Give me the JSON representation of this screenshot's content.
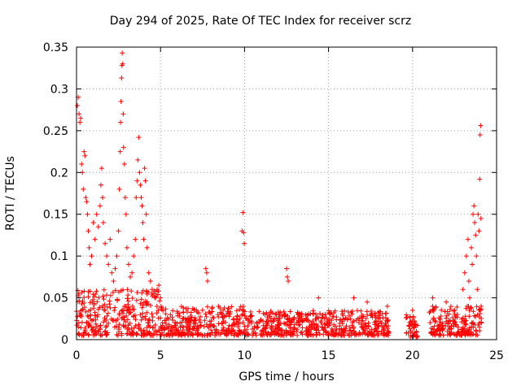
{
  "chart_data": {
    "type": "scatter",
    "title": "Day 294 of 2025, Rate Of TEC Index for receiver scrz",
    "xlabel": "GPS time / hours",
    "ylabel": "ROTI / TECUs",
    "xlim": [
      0,
      25
    ],
    "ylim": [
      0,
      0.35
    ],
    "xticks": [
      "0",
      "5",
      "10",
      "15",
      "20",
      "25"
    ],
    "yticks": [
      "0",
      "0.05",
      "0.1",
      "0.15",
      "0.2",
      "0.25",
      "0.3",
      "0.35"
    ],
    "grid": true,
    "marker": "+",
    "color": "#ff0000",
    "series": [
      {
        "name": "ROTI",
        "points": [
          [
            0.05,
            0.28
          ],
          [
            0.1,
            0.29
          ],
          [
            0.15,
            0.27
          ],
          [
            0.2,
            0.26
          ],
          [
            0.25,
            0.265
          ],
          [
            0.3,
            0.21
          ],
          [
            0.35,
            0.2
          ],
          [
            0.4,
            0.18
          ],
          [
            0.45,
            0.225
          ],
          [
            0.5,
            0.22
          ],
          [
            0.55,
            0.17
          ],
          [
            0.6,
            0.165
          ],
          [
            0.65,
            0.15
          ],
          [
            0.7,
            0.13
          ],
          [
            0.75,
            0.11
          ],
          [
            0.8,
            0.09
          ],
          [
            0.9,
            0.1
          ],
          [
            1.0,
            0.14
          ],
          [
            1.1,
            0.12
          ],
          [
            1.2,
            0.15
          ],
          [
            1.3,
            0.135
          ],
          [
            1.4,
            0.16
          ],
          [
            1.45,
            0.185
          ],
          [
            1.5,
            0.205
          ],
          [
            1.55,
            0.17
          ],
          [
            1.6,
            0.14
          ],
          [
            1.7,
            0.115
          ],
          [
            1.8,
            0.1
          ],
          [
            1.9,
            0.09
          ],
          [
            2.0,
            0.12
          ],
          [
            2.1,
            0.08
          ],
          [
            2.2,
            0.07
          ],
          [
            2.3,
            0.085
          ],
          [
            2.4,
            0.1
          ],
          [
            2.5,
            0.13
          ],
          [
            2.55,
            0.18
          ],
          [
            2.6,
            0.225
          ],
          [
            2.62,
            0.26
          ],
          [
            2.65,
            0.285
          ],
          [
            2.68,
            0.313
          ],
          [
            2.7,
            0.328
          ],
          [
            2.72,
            0.343
          ],
          [
            2.75,
            0.33
          ],
          [
            2.78,
            0.27
          ],
          [
            2.8,
            0.23
          ],
          [
            2.85,
            0.21
          ],
          [
            2.9,
            0.17
          ],
          [
            2.95,
            0.15
          ],
          [
            3.0,
            0.11
          ],
          [
            3.1,
            0.09
          ],
          [
            3.2,
            0.075
          ],
          [
            3.3,
            0.08
          ],
          [
            3.4,
            0.1
          ],
          [
            3.5,
            0.12
          ],
          [
            3.55,
            0.17
          ],
          [
            3.6,
            0.19
          ],
          [
            3.65,
            0.215
          ],
          [
            3.7,
            0.242
          ],
          [
            3.75,
            0.2
          ],
          [
            3.8,
            0.185
          ],
          [
            3.85,
            0.17
          ],
          [
            3.9,
            0.16
          ],
          [
            3.95,
            0.14
          ],
          [
            4.0,
            0.12
          ],
          [
            4.05,
            0.205
          ],
          [
            4.1,
            0.19
          ],
          [
            4.15,
            0.15
          ],
          [
            4.2,
            0.11
          ],
          [
            4.3,
            0.08
          ],
          [
            4.4,
            0.07
          ],
          [
            4.5,
            0.06
          ],
          [
            4.6,
            0.055
          ],
          [
            4.7,
            0.05
          ],
          [
            4.8,
            0.06
          ],
          [
            4.9,
            0.065
          ],
          [
            5.0,
            0.05
          ],
          [
            7.7,
            0.085
          ],
          [
            7.75,
            0.08
          ],
          [
            7.8,
            0.07
          ],
          [
            9.9,
            0.152
          ],
          [
            9.95,
            0.128
          ],
          [
            9.98,
            0.115
          ],
          [
            9.85,
            0.13
          ],
          [
            12.5,
            0.085
          ],
          [
            12.55,
            0.075
          ],
          [
            12.6,
            0.07
          ],
          [
            14.4,
            0.05
          ],
          [
            16.5,
            0.05
          ],
          [
            17.3,
            0.045
          ],
          [
            18.5,
            0.04
          ],
          [
            20.0,
            0.035
          ],
          [
            21.2,
            0.05
          ],
          [
            22.0,
            0.045
          ],
          [
            22.5,
            0.035
          ],
          [
            23.0,
            0.06
          ],
          [
            23.1,
            0.08
          ],
          [
            23.2,
            0.1
          ],
          [
            23.3,
            0.12
          ],
          [
            23.35,
            0.07
          ],
          [
            23.4,
            0.05
          ],
          [
            23.5,
            0.11
          ],
          [
            23.55,
            0.09
          ],
          [
            23.6,
            0.15
          ],
          [
            23.65,
            0.16
          ],
          [
            23.7,
            0.14
          ],
          [
            23.75,
            0.125
          ],
          [
            23.8,
            0.1
          ],
          [
            23.85,
            0.06
          ],
          [
            23.9,
            0.15
          ],
          [
            23.95,
            0.13
          ],
          [
            24.0,
            0.192
          ],
          [
            24.02,
            0.245
          ],
          [
            24.05,
            0.256
          ],
          [
            24.07,
            0.145
          ],
          [
            24.08,
            0.04
          ],
          [
            24.1,
            0.02
          ]
        ],
        "baseline_band": {
          "description": "dense low-level ROTI band across the day (data gaps near 18.6-19.6 h and 20.3-21.0 h)",
          "segments": [
            {
              "x": [
                0,
                5
              ],
              "y_min": 0.005,
              "y_max": 0.06
            },
            {
              "x": [
                5,
                10
              ],
              "y_min": 0.005,
              "y_max": 0.04
            },
            {
              "x": [
                10,
                15
              ],
              "y_min": 0.005,
              "y_max": 0.035
            },
            {
              "x": [
                15,
                18.6
              ],
              "y_min": 0.005,
              "y_max": 0.035
            },
            {
              "x": [
                19.6,
                20.3
              ],
              "y_min": 0.003,
              "y_max": 0.03
            },
            {
              "x": [
                21.0,
                24.1
              ],
              "y_min": 0.005,
              "y_max": 0.04
            }
          ]
        }
      }
    ]
  }
}
